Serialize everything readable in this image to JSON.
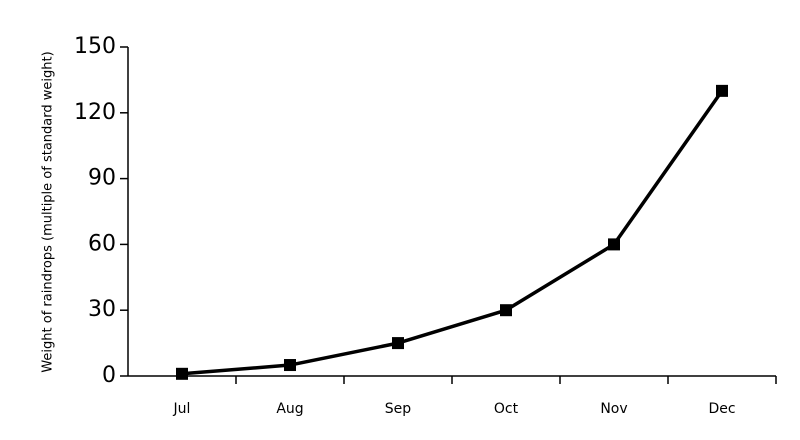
{
  "chart_data": {
    "type": "line",
    "y_label": "Weight of raindrops (multiple of standard weight)",
    "categories": [
      "Jul",
      "Aug",
      "Sep",
      "Oct",
      "Nov",
      "Dec"
    ],
    "values": [
      1,
      5,
      15,
      30,
      60,
      130
    ],
    "color": "#000000",
    "ylim": [
      0,
      150
    ],
    "yticks": [
      0,
      30,
      60,
      90,
      120,
      150
    ]
  }
}
